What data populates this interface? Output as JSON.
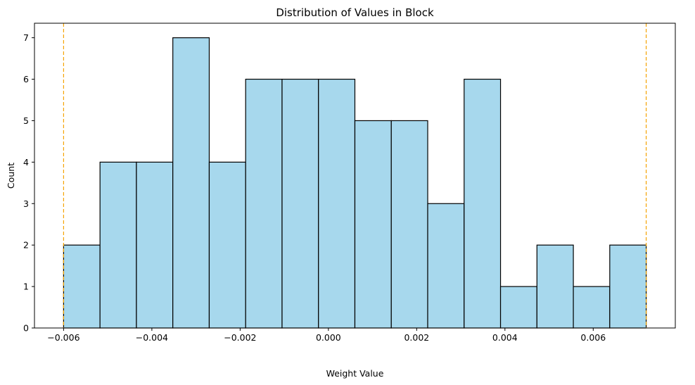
{
  "chart_data": {
    "type": "bar",
    "subtype": "histogram",
    "title": "Distribution of Values in Block",
    "xlabel": "Weight Value",
    "ylabel": "Count",
    "bin_edges": [
      -0.006,
      -0.005175,
      -0.00435,
      -0.003525,
      -0.0027,
      -0.001875,
      -0.00105,
      -0.000225,
      0.0006,
      0.001425,
      0.00225,
      0.003075,
      0.0039,
      0.004725,
      0.00555,
      0.006375,
      0.0072
    ],
    "counts": [
      2,
      4,
      4,
      7,
      4,
      6,
      6,
      6,
      5,
      5,
      3,
      6,
      1,
      2,
      1,
      2
    ],
    "xlim": [
      -0.00666,
      0.00786
    ],
    "ylim": [
      0,
      7.35
    ],
    "xticks": [
      -0.006,
      -0.004,
      -0.002,
      0.0,
      0.002,
      0.004,
      0.006
    ],
    "xtick_labels": [
      "−0.006",
      "−0.004",
      "−0.002",
      "0.000",
      "0.002",
      "0.004",
      "0.006"
    ],
    "yticks": [
      0,
      1,
      2,
      3,
      4,
      5,
      6,
      7
    ],
    "ytick_labels": [
      "0",
      "1",
      "2",
      "3",
      "4",
      "5",
      "6",
      "7"
    ],
    "reference_lines": [
      -0.006,
      0.0072
    ],
    "colors": {
      "bar_fill": "#a7d8ed",
      "bar_edge": "#000000",
      "reference_line": "#f5a300"
    },
    "grid": false,
    "legend": null
  }
}
